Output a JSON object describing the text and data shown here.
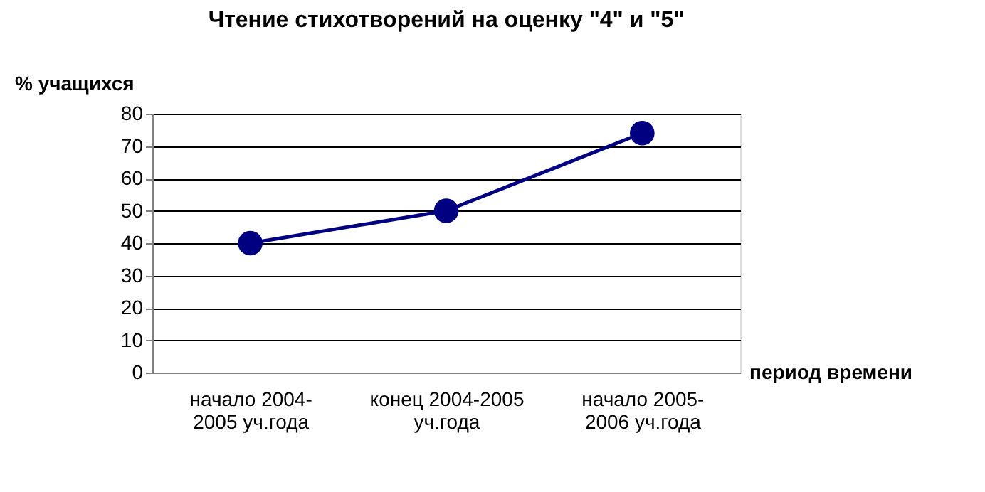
{
  "chart_data": {
    "type": "line",
    "title": "Чтение стихотворений на оценку \"4\" и \"5\"",
    "xlabel": "период времени",
    "ylabel": "% учащихся",
    "categories": [
      "начало 2004-2005 уч.года",
      "конец 2004-2005 уч.года",
      "начало 2005-2006 уч.года"
    ],
    "series": [
      {
        "color": "#000080",
        "values": [
          40,
          50,
          74
        ]
      }
    ],
    "ylim": [
      0,
      80
    ],
    "yticks": [
      0,
      10,
      20,
      30,
      40,
      50,
      60,
      70,
      80
    ],
    "grid": "y",
    "marker": "circle",
    "line_style": "solid"
  }
}
